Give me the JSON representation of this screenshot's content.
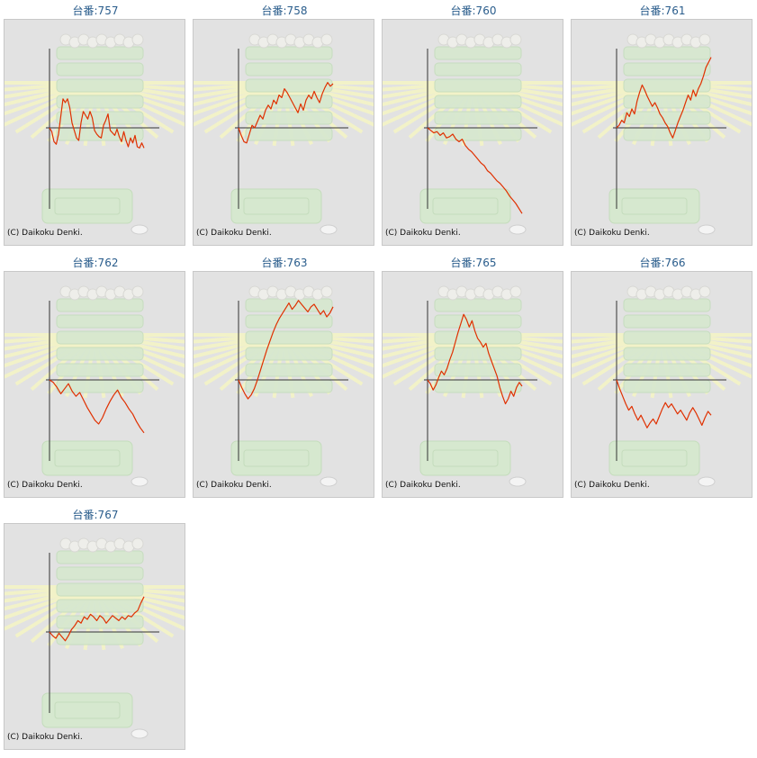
{
  "colors": {
    "title": "#2a5d8c",
    "line": "#e03000",
    "axis": "#333333",
    "bg": "#e2e2e2"
  },
  "copyright": "(C) Daikoku Denki.",
  "chart_data": [
    {
      "type": "line",
      "title": "台番:757",
      "series": [
        {
          "values": [
            0,
            -300,
            -1100,
            -1300,
            -500,
            900,
            2300,
            2000,
            2300,
            1600,
            400,
            -200,
            -800,
            -1000,
            400,
            1300,
            1000,
            700,
            1300,
            800,
            -200,
            -500,
            -700,
            -800,
            200,
            600,
            1100,
            -200,
            -400,
            -600,
            -100,
            -700,
            -1100,
            -300,
            -1000,
            -1500,
            -800,
            -1200,
            -600,
            -1500,
            -1600,
            -1200,
            -1600
          ]
        }
      ]
    },
    {
      "type": "line",
      "title": "台番:758",
      "series": [
        {
          "values": [
            0,
            -600,
            -1100,
            -1200,
            -500,
            200,
            0,
            500,
            1000,
            700,
            1400,
            1800,
            1500,
            2200,
            1900,
            2600,
            2400,
            3100,
            2800,
            2400,
            2000,
            1600,
            1200,
            1900,
            1400,
            2200,
            2600,
            2300,
            2900,
            2400,
            2000,
            2700,
            3200,
            3600,
            3300,
            3500
          ]
        }
      ]
    },
    {
      "type": "line",
      "title": "台番:760",
      "series": [
        {
          "values": [
            0,
            -200,
            -400,
            -300,
            -600,
            -400,
            -800,
            -700,
            -500,
            -900,
            -1100,
            -900,
            -1400,
            -1700,
            -1900,
            -2200,
            -2500,
            -2800,
            -3000,
            -3400,
            -3600,
            -3900,
            -4200,
            -4400,
            -4700,
            -5000,
            -5400,
            -5700,
            -6000,
            -6400,
            -6800
          ]
        }
      ]
    },
    {
      "type": "line",
      "title": "台番:761",
      "series": [
        {
          "values": [
            0,
            200,
            600,
            400,
            1200,
            900,
            1500,
            1100,
            2100,
            2800,
            3400,
            3000,
            2500,
            2100,
            1700,
            2000,
            1600,
            1100,
            800,
            400,
            100,
            -400,
            -800,
            -200,
            400,
            900,
            1400,
            2000,
            2600,
            2200,
            3000,
            2500,
            3100,
            3500,
            4100,
            4800,
            5200,
            5600
          ]
        }
      ]
    },
    {
      "type": "line",
      "title": "台番:762",
      "series": [
        {
          "values": [
            0,
            -200,
            -600,
            -1100,
            -700,
            -300,
            -900,
            -1300,
            -1000,
            -1600,
            -2200,
            -2700,
            -3200,
            -3500,
            -3000,
            -2300,
            -1700,
            -1200,
            -800,
            -1400,
            -1800,
            -2300,
            -2700,
            -3300,
            -3800,
            -4200
          ]
        }
      ]
    },
    {
      "type": "line",
      "title": "台番:763",
      "series": [
        {
          "values": [
            0,
            -600,
            -1100,
            -1500,
            -1200,
            -700,
            0,
            800,
            1600,
            2400,
            3100,
            3800,
            4400,
            4900,
            5300,
            5700,
            6100,
            5600,
            5900,
            6300,
            6000,
            5700,
            5400,
            5800,
            6000,
            5600,
            5200,
            5500,
            5000,
            5300,
            5800
          ]
        }
      ]
    },
    {
      "type": "line",
      "title": "台番:765",
      "series": [
        {
          "values": [
            0,
            -300,
            -800,
            -400,
            200,
            700,
            400,
            900,
            1600,
            2200,
            3000,
            3800,
            4500,
            5200,
            4800,
            4200,
            4700,
            3900,
            3300,
            3000,
            2600,
            2900,
            2100,
            1500,
            900,
            300,
            -600,
            -1300,
            -1900,
            -1500,
            -900,
            -1300,
            -600,
            -200,
            -500
          ]
        }
      ]
    },
    {
      "type": "line",
      "title": "台番:766",
      "series": [
        {
          "values": [
            0,
            -700,
            -1300,
            -1900,
            -2400,
            -2100,
            -2700,
            -3200,
            -2800,
            -3300,
            -3800,
            -3400,
            -3100,
            -3500,
            -2900,
            -2300,
            -1800,
            -2200,
            -1900,
            -2300,
            -2700,
            -2400,
            -2800,
            -3200,
            -2600,
            -2200,
            -2600,
            -3100,
            -3600,
            -3000,
            -2500,
            -2800
          ]
        }
      ]
    },
    {
      "type": "line",
      "title": "台番:767",
      "series": [
        {
          "values": [
            0,
            -300,
            -500,
            -100,
            -400,
            -700,
            -300,
            200,
            500,
            900,
            700,
            1200,
            1000,
            1400,
            1200,
            900,
            1300,
            1100,
            700,
            1000,
            1300,
            1100,
            900,
            1200,
            1000,
            1300,
            1200,
            1500,
            1700,
            2300,
            2800
          ]
        }
      ]
    }
  ]
}
